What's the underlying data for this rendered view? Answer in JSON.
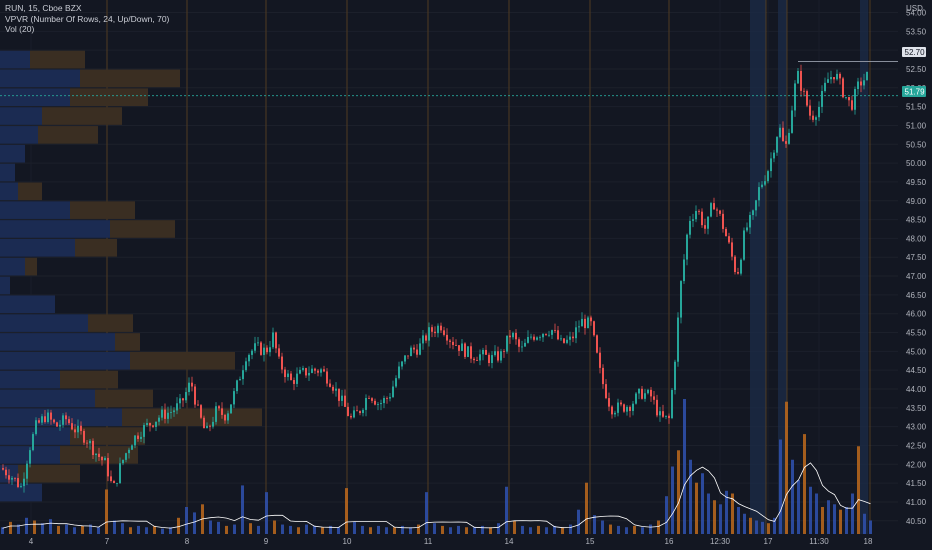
{
  "legend": {
    "symbol_line": "RUN, 15, Cboe BZX",
    "vpvr_line": "VPVR (Number Of Rows, 24, Up/Down, 70)",
    "vol_line": "Vol (20)"
  },
  "currency": "USD",
  "price_tags": {
    "high": "52.70",
    "last": "51.79"
  },
  "colors": {
    "up": "#26a69a",
    "down": "#ef5350",
    "vol_up": "#2f4fa8",
    "vol_down": "#b5651d",
    "background": "#131722",
    "session_shade": "#1c2a46",
    "session_line": "#6b4a1f",
    "ma_line": "#ffffff",
    "vpvr_up": "#1b2b52",
    "vpvr_down": "#3a2e22"
  },
  "chart_data": {
    "type": "candlestick",
    "title": "RUN, 15, Cboe BZX",
    "y_ticks": [
      "40.50",
      "41.00",
      "41.50",
      "42.00",
      "42.50",
      "43.00",
      "43.50",
      "44.00",
      "44.50",
      "45.00",
      "45.50",
      "46.00",
      "46.50",
      "47.00",
      "47.50",
      "48.00",
      "48.50",
      "49.00",
      "49.50",
      "50.00",
      "50.50",
      "51.00",
      "51.50",
      "52.00",
      "52.50",
      "53.00",
      "53.50",
      "54.00"
    ],
    "ylim": [
      40.2,
      54.1
    ],
    "x_ticks": [
      "4",
      "7",
      "8",
      "9",
      "10",
      "11",
      "14",
      "15",
      "16",
      "12:30",
      "17",
      "11:30",
      "18"
    ],
    "last_price": 51.79,
    "session_high": 52.7,
    "path": [
      [
        0,
        41.9
      ],
      [
        10,
        41.7
      ],
      [
        20,
        41.4
      ],
      [
        28,
        42.4
      ],
      [
        35,
        43.0
      ],
      [
        45,
        43.3
      ],
      [
        55,
        43.0
      ],
      [
        65,
        43.2
      ],
      [
        75,
        42.9
      ],
      [
        85,
        42.7
      ],
      [
        95,
        42.3
      ],
      [
        105,
        42.0
      ],
      [
        112,
        41.3
      ],
      [
        120,
        42.0
      ],
      [
        130,
        42.6
      ],
      [
        140,
        42.9
      ],
      [
        150,
        43.1
      ],
      [
        160,
        43.3
      ],
      [
        170,
        43.4
      ],
      [
        180,
        43.6
      ],
      [
        190,
        44.2
      ],
      [
        197,
        43.4
      ],
      [
        205,
        42.8
      ],
      [
        215,
        43.4
      ],
      [
        225,
        43.3
      ],
      [
        235,
        44.0
      ],
      [
        245,
        44.9
      ],
      [
        255,
        45.1
      ],
      [
        265,
        45.0
      ],
      [
        272,
        45.4
      ],
      [
        278,
        44.7
      ],
      [
        290,
        44.2
      ],
      [
        300,
        44.4
      ],
      [
        310,
        44.5
      ],
      [
        320,
        44.5
      ],
      [
        330,
        44.2
      ],
      [
        340,
        43.7
      ],
      [
        350,
        43.2
      ],
      [
        358,
        43.4
      ],
      [
        368,
        43.9
      ],
      [
        378,
        43.6
      ],
      [
        388,
        43.8
      ],
      [
        398,
        44.5
      ],
      [
        408,
        45.0
      ],
      [
        418,
        45.1
      ],
      [
        428,
        45.5
      ],
      [
        440,
        45.7
      ],
      [
        450,
        45.3
      ],
      [
        460,
        45.1
      ],
      [
        470,
        44.9
      ],
      [
        480,
        44.9
      ],
      [
        490,
        44.8
      ],
      [
        500,
        44.9
      ],
      [
        510,
        45.5
      ],
      [
        520,
        45.0
      ],
      [
        530,
        45.4
      ],
      [
        540,
        45.5
      ],
      [
        550,
        45.6
      ],
      [
        560,
        45.2
      ],
      [
        570,
        45.3
      ],
      [
        580,
        45.8
      ],
      [
        590,
        45.7
      ],
      [
        600,
        44.3
      ],
      [
        610,
        43.5
      ],
      [
        620,
        43.5
      ],
      [
        630,
        43.6
      ],
      [
        640,
        43.9
      ],
      [
        650,
        43.8
      ],
      [
        660,
        43.2
      ],
      [
        668,
        43.2
      ],
      [
        672,
        44.2
      ],
      [
        680,
        46.8
      ],
      [
        688,
        48.5
      ],
      [
        696,
        48.8
      ],
      [
        705,
        48.2
      ],
      [
        712,
        49.0
      ],
      [
        720,
        48.5
      ],
      [
        728,
        47.8
      ],
      [
        736,
        47.0
      ],
      [
        744,
        48.2
      ],
      [
        752,
        48.6
      ],
      [
        758,
        49.3
      ],
      [
        768,
        49.9
      ],
      [
        778,
        51.0
      ],
      [
        784,
        50.3
      ],
      [
        790,
        51.3
      ],
      [
        796,
        52.4
      ],
      [
        803,
        51.8
      ],
      [
        810,
        51.2
      ],
      [
        818,
        51.5
      ],
      [
        826,
        52.2
      ],
      [
        834,
        52.4
      ],
      [
        842,
        51.9
      ],
      [
        850,
        51.5
      ],
      [
        858,
        52.1
      ],
      [
        866,
        52.3
      ]
    ],
    "volume": [
      [
        0,
        0.05
      ],
      [
        8,
        0.09
      ],
      [
        16,
        0.07
      ],
      [
        24,
        0.12
      ],
      [
        32,
        0.1
      ],
      [
        40,
        0.08
      ],
      [
        48,
        0.11
      ],
      [
        56,
        0.06
      ],
      [
        64,
        0.07
      ],
      [
        72,
        0.05
      ],
      [
        80,
        0.06
      ],
      [
        88,
        0.07
      ],
      [
        96,
        0.05
      ],
      [
        104,
        0.33
      ],
      [
        112,
        0.1
      ],
      [
        120,
        0.08
      ],
      [
        128,
        0.05
      ],
      [
        136,
        0.06
      ],
      [
        144,
        0.05
      ],
      [
        152,
        0.06
      ],
      [
        160,
        0.04
      ],
      [
        168,
        0.05
      ],
      [
        176,
        0.12
      ],
      [
        184,
        0.2
      ],
      [
        192,
        0.16
      ],
      [
        200,
        0.22
      ],
      [
        208,
        0.1
      ],
      [
        216,
        0.09
      ],
      [
        224,
        0.06
      ],
      [
        232,
        0.07
      ],
      [
        240,
        0.36
      ],
      [
        248,
        0.08
      ],
      [
        256,
        0.06
      ],
      [
        264,
        0.31
      ],
      [
        272,
        0.1
      ],
      [
        280,
        0.07
      ],
      [
        288,
        0.06
      ],
      [
        296,
        0.05
      ],
      [
        304,
        0.07
      ],
      [
        312,
        0.06
      ],
      [
        320,
        0.05
      ],
      [
        328,
        0.06
      ],
      [
        336,
        0.05
      ],
      [
        344,
        0.34
      ],
      [
        352,
        0.09
      ],
      [
        360,
        0.06
      ],
      [
        368,
        0.05
      ],
      [
        376,
        0.06
      ],
      [
        384,
        0.05
      ],
      [
        392,
        0.05
      ],
      [
        400,
        0.06
      ],
      [
        408,
        0.05
      ],
      [
        416,
        0.07
      ],
      [
        424,
        0.31
      ],
      [
        432,
        0.08
      ],
      [
        440,
        0.06
      ],
      [
        448,
        0.05
      ],
      [
        456,
        0.06
      ],
      [
        464,
        0.05
      ],
      [
        472,
        0.05
      ],
      [
        480,
        0.06
      ],
      [
        488,
        0.05
      ],
      [
        496,
        0.08
      ],
      [
        504,
        0.35
      ],
      [
        512,
        0.1
      ],
      [
        520,
        0.06
      ],
      [
        528,
        0.05
      ],
      [
        536,
        0.06
      ],
      [
        544,
        0.05
      ],
      [
        552,
        0.06
      ],
      [
        560,
        0.05
      ],
      [
        568,
        0.07
      ],
      [
        576,
        0.18
      ],
      [
        584,
        0.38
      ],
      [
        592,
        0.14
      ],
      [
        600,
        0.1
      ],
      [
        608,
        0.07
      ],
      [
        616,
        0.06
      ],
      [
        624,
        0.05
      ],
      [
        632,
        0.06
      ],
      [
        640,
        0.05
      ],
      [
        648,
        0.07
      ],
      [
        656,
        0.1
      ],
      [
        664,
        0.28
      ],
      [
        670,
        0.5
      ],
      [
        676,
        0.62
      ],
      [
        682,
        1.0
      ],
      [
        688,
        0.55
      ],
      [
        694,
        0.38
      ],
      [
        700,
        0.45
      ],
      [
        706,
        0.3
      ],
      [
        712,
        0.25
      ],
      [
        718,
        0.22
      ],
      [
        724,
        0.32
      ],
      [
        730,
        0.3
      ],
      [
        736,
        0.2
      ],
      [
        742,
        0.15
      ],
      [
        748,
        0.12
      ],
      [
        754,
        0.1
      ],
      [
        760,
        0.09
      ],
      [
        766,
        0.08
      ],
      [
        772,
        0.12
      ],
      [
        778,
        0.7
      ],
      [
        784,
        0.98
      ],
      [
        790,
        0.55
      ],
      [
        796,
        0.4
      ],
      [
        802,
        0.74
      ],
      [
        808,
        0.35
      ],
      [
        814,
        0.3
      ],
      [
        820,
        0.2
      ],
      [
        826,
        0.25
      ],
      [
        832,
        0.22
      ],
      [
        838,
        0.18
      ],
      [
        844,
        0.2
      ],
      [
        850,
        0.3
      ],
      [
        856,
        0.65
      ],
      [
        862,
        0.15
      ],
      [
        868,
        0.1
      ]
    ],
    "vpvr_rows": [
      {
        "price": 52.75,
        "up": 30,
        "down": 55
      },
      {
        "price": 52.25,
        "up": 80,
        "down": 100
      },
      {
        "price": 51.75,
        "up": 70,
        "down": 78
      },
      {
        "price": 51.25,
        "up": 42,
        "down": 80
      },
      {
        "price": 50.75,
        "up": 38,
        "down": 60
      },
      {
        "price": 50.25,
        "up": 25,
        "down": 0
      },
      {
        "price": 49.75,
        "up": 15,
        "down": 0
      },
      {
        "price": 49.25,
        "up": 18,
        "down": 24
      },
      {
        "price": 48.75,
        "up": 70,
        "down": 65
      },
      {
        "price": 48.25,
        "up": 110,
        "down": 65
      },
      {
        "price": 47.75,
        "up": 75,
        "down": 42
      },
      {
        "price": 47.25,
        "up": 25,
        "down": 12
      },
      {
        "price": 46.75,
        "up": 10,
        "down": 0
      },
      {
        "price": 46.25,
        "up": 55,
        "down": 0
      },
      {
        "price": 45.75,
        "up": 88,
        "down": 45
      },
      {
        "price": 45.25,
        "up": 115,
        "down": 25
      },
      {
        "price": 44.75,
        "up": 130,
        "down": 105
      },
      {
        "price": 44.25,
        "up": 60,
        "down": 58
      },
      {
        "price": 43.75,
        "up": 95,
        "down": 58
      },
      {
        "price": 43.25,
        "up": 122,
        "down": 140
      },
      {
        "price": 42.75,
        "up": 70,
        "down": 75
      },
      {
        "price": 42.25,
        "up": 60,
        "down": 78
      },
      {
        "price": 41.75,
        "up": 18,
        "down": 62
      },
      {
        "price": 41.25,
        "up": 42,
        "down": 0
      }
    ]
  }
}
